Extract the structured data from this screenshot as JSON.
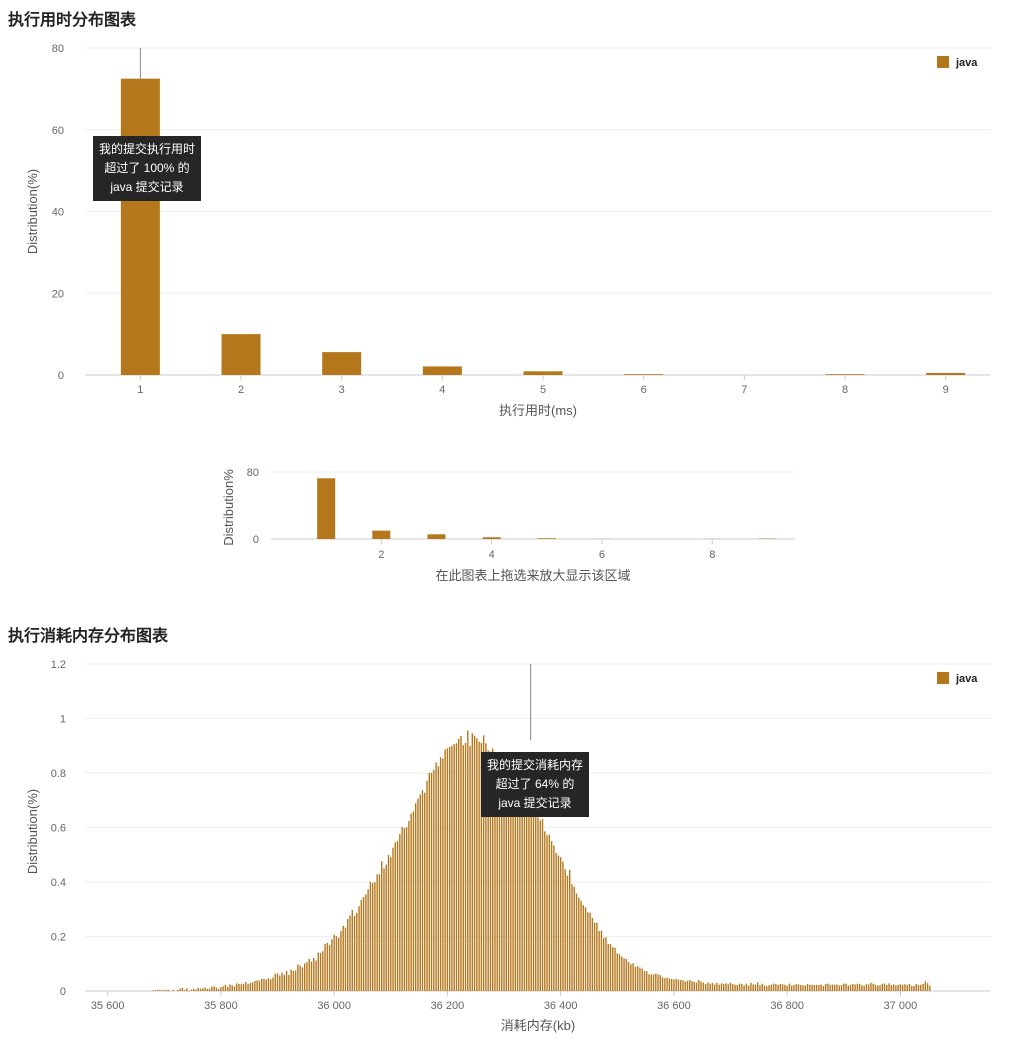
{
  "section1": {
    "title": "执行用时分布图表"
  },
  "section2": {
    "title": "执行消耗内存分布图表"
  },
  "colors": {
    "bar": "#b5771c",
    "grid": "#eeeeee",
    "axis": "#cccccc",
    "marker": "#888888"
  },
  "chart_data": [
    {
      "type": "bar",
      "name": "runtime-main",
      "categories": [
        "1",
        "2",
        "3",
        "4",
        "5",
        "6",
        "7",
        "8",
        "9"
      ],
      "series": [
        {
          "name": "java",
          "values": [
            72.5,
            10.0,
            5.6,
            2.1,
            0.9,
            0.2,
            0.0,
            0.2,
            0.5
          ]
        }
      ],
      "ylim": [
        0,
        80
      ],
      "yticks": [
        "0",
        "20",
        "40",
        "60",
        "80"
      ],
      "xlabel": "执行用时(ms)",
      "ylabel": "Distribution(%)",
      "legend": "top-right",
      "marker_category": "1",
      "tooltip": [
        "我的提交执行用时",
        "超过了 100% 的",
        "java 提交记录"
      ]
    },
    {
      "type": "bar",
      "name": "runtime-navigator",
      "x": [
        1,
        2,
        3,
        4,
        5,
        6,
        7,
        8,
        9
      ],
      "values": [
        72.5,
        10.0,
        5.6,
        2.1,
        0.9,
        0.2,
        0.0,
        0.2,
        0.5
      ],
      "xlim": [
        0,
        9.5
      ],
      "ylim": [
        0,
        80
      ],
      "xticks": [
        "2",
        "4",
        "6",
        "8"
      ],
      "yticks": [
        "0",
        "80"
      ],
      "ylabel": "Distribution%",
      "xlabel": "在此图表上拖选来放大显示该区域"
    },
    {
      "type": "bar",
      "name": "memory-main",
      "series_name": "java",
      "xlim": [
        35560,
        37160
      ],
      "ylim": [
        0,
        1.2
      ],
      "xticks": [
        "35 600",
        "35 800",
        "36 000",
        "36 200",
        "36 400",
        "36 600",
        "36 800",
        "37 000"
      ],
      "yticks": [
        "0",
        "0.2",
        "0.4",
        "0.6",
        "0.8",
        "1",
        "1.2"
      ],
      "xlabel": "消耗内存(kb)",
      "ylabel": "Distribution(%)",
      "legend": "top-right",
      "marker_x": 36347,
      "tooltip": [
        "我的提交消耗内存",
        "超过了 64% 的",
        "java 提交记录"
      ],
      "x_start": 35600,
      "x_end": 37150,
      "x_step": 4,
      "values": [
        0,
        0,
        0,
        0,
        0,
        0,
        0,
        0,
        0,
        0,
        0,
        0,
        0,
        0,
        0,
        0,
        0,
        0,
        0,
        0,
        0.002,
        0.003,
        0.004,
        0.004,
        0.003,
        0.003,
        0.005,
        0.004,
        0,
        0.004,
        0,
        0.004,
        0.009,
        0.011,
        0.004,
        0.01,
        0.002,
        0.005,
        0.008,
        0.005,
        0.011,
        0.009,
        0.01,
        0.013,
        0.008,
        0.009,
        0.016,
        0.017,
        0.013,
        0.007,
        0.014,
        0.017,
        0.023,
        0.015,
        0.024,
        0.021,
        0.016,
        0.028,
        0.026,
        0.025,
        0.026,
        0.033,
        0.025,
        0.029,
        0.032,
        0.037,
        0.039,
        0.038,
        0.045,
        0.045,
        0.042,
        0.047,
        0.043,
        0.049,
        0.063,
        0.065,
        0.057,
        0.068,
        0.059,
        0.074,
        0.059,
        0.078,
        0.074,
        0.075,
        0.098,
        0.093,
        0.087,
        0.101,
        0.106,
        0.118,
        0.108,
        0.121,
        0.112,
        0.141,
        0.14,
        0.146,
        0.173,
        0.176,
        0.169,
        0.19,
        0.207,
        0.201,
        0.195,
        0.22,
        0.239,
        0.233,
        0.264,
        0.277,
        0.297,
        0.276,
        0.287,
        0.311,
        0.335,
        0.345,
        0.354,
        0.373,
        0.401,
        0.396,
        0.399,
        0.428,
        0.428,
        0.476,
        0.45,
        0.464,
        0.499,
        0.491,
        0.526,
        0.546,
        0.551,
        0.576,
        0.602,
        0.598,
        0.601,
        0.624,
        0.651,
        0.659,
        0.689,
        0.706,
        0.721,
        0.737,
        0.728,
        0.771,
        0.8,
        0.801,
        0.811,
        0.839,
        0.825,
        0.858,
        0.853,
        0.886,
        0.891,
        0.896,
        0.9,
        0.906,
        0.909,
        0.925,
        0.936,
        0.902,
        0.91,
        0.956,
        0.9,
        0.946,
        0.937,
        0.927,
        0.915,
        0.91,
        0.938,
        0.909,
        0.883,
        0.879,
        0.89,
        0.87,
        0.857,
        0.839,
        0.838,
        0.82,
        0.805,
        0.821,
        0.782,
        0.796,
        0.77,
        0.737,
        0.745,
        0.737,
        0.724,
        0.703,
        0.691,
        0.674,
        0.662,
        0.645,
        0.637,
        0.626,
        0.631,
        0.586,
        0.571,
        0.574,
        0.55,
        0.534,
        0.507,
        0.497,
        0.491,
        0.475,
        0.447,
        0.423,
        0.445,
        0.392,
        0.382,
        0.358,
        0.343,
        0.331,
        0.315,
        0.307,
        0.289,
        0.287,
        0.268,
        0.251,
        0.25,
        0.22,
        0.221,
        0.194,
        0.197,
        0.172,
        0.172,
        0.161,
        0.158,
        0.138,
        0.135,
        0.126,
        0.12,
        0.118,
        0.106,
        0.098,
        0.102,
        0.088,
        0.091,
        0.086,
        0.082,
        0.073,
        0.073,
        0.061,
        0.061,
        0.061,
        0.064,
        0.061,
        0.058,
        0.05,
        0.047,
        0.049,
        0.046,
        0.045,
        0.042,
        0.045,
        0.042,
        0.04,
        0.039,
        0.035,
        0.038,
        0.04,
        0.036,
        0.033,
        0.031,
        0.041,
        0.035,
        0.031,
        0.026,
        0.031,
        0.027,
        0.029,
        0.024,
        0.03,
        0.023,
        0.028,
        0.026,
        0.028,
        0.025,
        0.03,
        0.025,
        0.023,
        0.022,
        0.027,
        0.026,
        0.02,
        0.027,
        0.019,
        0.03,
        0.024,
        0.024,
        0.032,
        0.021,
        0.027,
        0.02,
        0.018,
        0.021,
        0.023,
        0.027,
        0.025,
        0.023,
        0.026,
        0.025,
        0.023,
        0.019,
        0.027,
        0.02,
        0.022,
        0.025,
        0.025,
        0.022,
        0.021,
        0.02,
        0.026,
        0.023,
        0.023,
        0.022,
        0.023,
        0.022,
        0.024,
        0.018,
        0.026,
        0.027,
        0.023,
        0.024,
        0.023,
        0.024,
        0.02,
        0.022,
        0.027,
        0.027,
        0.02,
        0.023,
        0.026,
        0.024,
        0.027,
        0.026,
        0.021,
        0.019,
        0.025,
        0.024,
        0.03,
        0.027,
        0.023,
        0.02,
        0.021,
        0.027,
        0.027,
        0.022,
        0.028,
        0.022,
        0.024,
        0.021,
        0.022,
        0.025,
        0.023,
        0.025,
        0.022,
        0.026,
        0.019,
        0.019,
        0.026,
        0.022,
        0.023,
        0.026,
        0.035,
        0.029,
        0.02
      ]
    }
  ]
}
